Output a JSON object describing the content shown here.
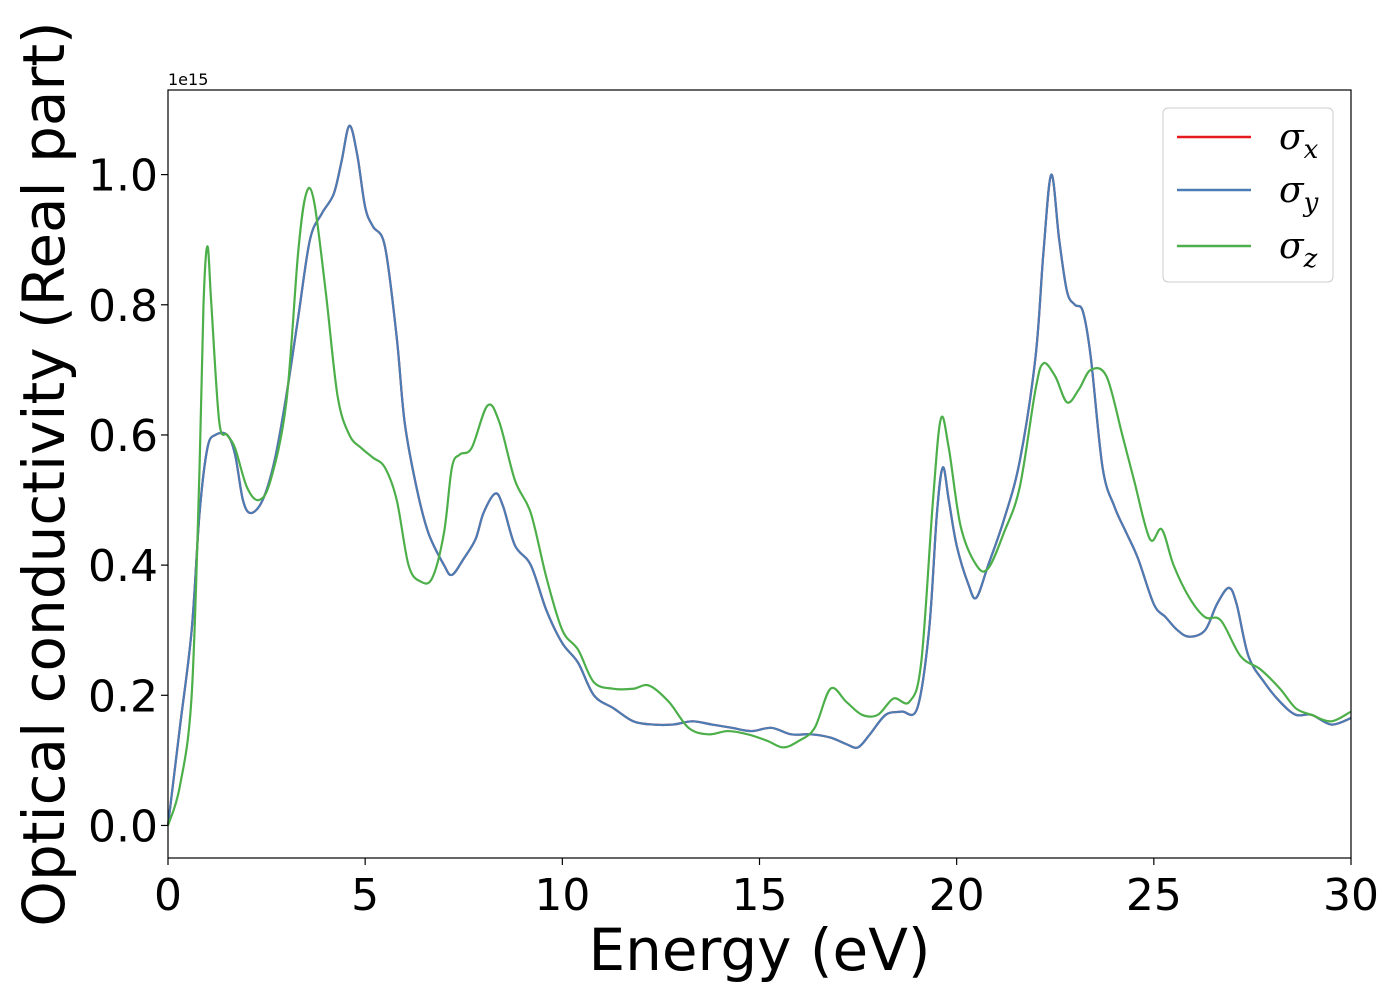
{
  "chart_data": {
    "type": "line",
    "xlabel": "Energy (eV)",
    "ylabel": "Optical conductivity (Real part)",
    "y_offset_label": "1e15",
    "xlim": [
      0,
      30
    ],
    "ylim": [
      -0.05,
      1.13
    ],
    "xticks": [
      0,
      5,
      10,
      15,
      20,
      25,
      30
    ],
    "xtick_labels": [
      "0",
      "5",
      "10",
      "15",
      "20",
      "25",
      "30"
    ],
    "yticks": [
      0.0,
      0.2,
      0.4,
      0.6,
      0.8,
      1.0
    ],
    "ytick_labels": [
      "0.0",
      "0.2",
      "0.4",
      "0.6",
      "0.8",
      "1.0"
    ],
    "grid": false,
    "legend_position": "top-right",
    "series": [
      {
        "name": "σx",
        "symbol": "σ",
        "sub": "x",
        "color": "#e41a1c",
        "points": [
          [
            0,
            0.0
          ],
          [
            0.3,
            0.15
          ],
          [
            0.6,
            0.3
          ],
          [
            0.8,
            0.48
          ],
          [
            1.0,
            0.58
          ],
          [
            1.2,
            0.6
          ],
          [
            1.5,
            0.6
          ],
          [
            1.7,
            0.57
          ],
          [
            1.9,
            0.5
          ],
          [
            2.1,
            0.48
          ],
          [
            2.4,
            0.5
          ],
          [
            2.7,
            0.56
          ],
          [
            3.0,
            0.66
          ],
          [
            3.3,
            0.78
          ],
          [
            3.6,
            0.9
          ],
          [
            3.9,
            0.94
          ],
          [
            4.2,
            0.97
          ],
          [
            4.4,
            1.02
          ],
          [
            4.6,
            1.075
          ],
          [
            4.8,
            1.03
          ],
          [
            5.0,
            0.95
          ],
          [
            5.2,
            0.92
          ],
          [
            5.5,
            0.89
          ],
          [
            5.8,
            0.75
          ],
          [
            6.0,
            0.62
          ],
          [
            6.3,
            0.52
          ],
          [
            6.6,
            0.45
          ],
          [
            7.0,
            0.4
          ],
          [
            7.2,
            0.385
          ],
          [
            7.5,
            0.41
          ],
          [
            7.8,
            0.44
          ],
          [
            8.0,
            0.48
          ],
          [
            8.3,
            0.51
          ],
          [
            8.5,
            0.49
          ],
          [
            8.8,
            0.43
          ],
          [
            9.2,
            0.4
          ],
          [
            9.6,
            0.33
          ],
          [
            10.0,
            0.28
          ],
          [
            10.4,
            0.25
          ],
          [
            10.8,
            0.2
          ],
          [
            11.3,
            0.18
          ],
          [
            11.8,
            0.16
          ],
          [
            12.3,
            0.155
          ],
          [
            12.8,
            0.155
          ],
          [
            13.3,
            0.16
          ],
          [
            13.8,
            0.155
          ],
          [
            14.3,
            0.15
          ],
          [
            14.8,
            0.145
          ],
          [
            15.3,
            0.15
          ],
          [
            15.8,
            0.14
          ],
          [
            16.3,
            0.14
          ],
          [
            16.8,
            0.135
          ],
          [
            17.2,
            0.125
          ],
          [
            17.5,
            0.12
          ],
          [
            17.8,
            0.14
          ],
          [
            18.2,
            0.17
          ],
          [
            18.6,
            0.175
          ],
          [
            19.0,
            0.18
          ],
          [
            19.3,
            0.3
          ],
          [
            19.5,
            0.48
          ],
          [
            19.65,
            0.55
          ],
          [
            19.8,
            0.5
          ],
          [
            20.0,
            0.43
          ],
          [
            20.3,
            0.37
          ],
          [
            20.5,
            0.35
          ],
          [
            20.8,
            0.4
          ],
          [
            21.2,
            0.47
          ],
          [
            21.6,
            0.56
          ],
          [
            22.0,
            0.72
          ],
          [
            22.2,
            0.88
          ],
          [
            22.4,
            1.0
          ],
          [
            22.6,
            0.9
          ],
          [
            22.8,
            0.82
          ],
          [
            23.0,
            0.8
          ],
          [
            23.2,
            0.79
          ],
          [
            23.4,
            0.72
          ],
          [
            23.7,
            0.55
          ],
          [
            24.0,
            0.49
          ],
          [
            24.3,
            0.45
          ],
          [
            24.6,
            0.41
          ],
          [
            25.0,
            0.34
          ],
          [
            25.3,
            0.32
          ],
          [
            25.6,
            0.3
          ],
          [
            25.9,
            0.29
          ],
          [
            26.3,
            0.3
          ],
          [
            26.6,
            0.34
          ],
          [
            26.9,
            0.365
          ],
          [
            27.1,
            0.34
          ],
          [
            27.4,
            0.26
          ],
          [
            27.8,
            0.22
          ],
          [
            28.2,
            0.19
          ],
          [
            28.6,
            0.17
          ],
          [
            29.0,
            0.17
          ],
          [
            29.5,
            0.155
          ],
          [
            30.0,
            0.165
          ]
        ]
      },
      {
        "name": "σy",
        "symbol": "σ",
        "sub": "y",
        "color": "#4a7db5",
        "points": [
          [
            0,
            0.0
          ],
          [
            0.3,
            0.15
          ],
          [
            0.6,
            0.3
          ],
          [
            0.8,
            0.48
          ],
          [
            1.0,
            0.58
          ],
          [
            1.2,
            0.6
          ],
          [
            1.5,
            0.6
          ],
          [
            1.7,
            0.57
          ],
          [
            1.9,
            0.5
          ],
          [
            2.1,
            0.48
          ],
          [
            2.4,
            0.5
          ],
          [
            2.7,
            0.56
          ],
          [
            3.0,
            0.66
          ],
          [
            3.3,
            0.78
          ],
          [
            3.6,
            0.9
          ],
          [
            3.9,
            0.94
          ],
          [
            4.2,
            0.97
          ],
          [
            4.4,
            1.02
          ],
          [
            4.6,
            1.075
          ],
          [
            4.8,
            1.03
          ],
          [
            5.0,
            0.95
          ],
          [
            5.2,
            0.92
          ],
          [
            5.5,
            0.89
          ],
          [
            5.8,
            0.75
          ],
          [
            6.0,
            0.62
          ],
          [
            6.3,
            0.52
          ],
          [
            6.6,
            0.45
          ],
          [
            7.0,
            0.4
          ],
          [
            7.2,
            0.385
          ],
          [
            7.5,
            0.41
          ],
          [
            7.8,
            0.44
          ],
          [
            8.0,
            0.48
          ],
          [
            8.3,
            0.51
          ],
          [
            8.5,
            0.49
          ],
          [
            8.8,
            0.43
          ],
          [
            9.2,
            0.4
          ],
          [
            9.6,
            0.33
          ],
          [
            10.0,
            0.28
          ],
          [
            10.4,
            0.25
          ],
          [
            10.8,
            0.2
          ],
          [
            11.3,
            0.18
          ],
          [
            11.8,
            0.16
          ],
          [
            12.3,
            0.155
          ],
          [
            12.8,
            0.155
          ],
          [
            13.3,
            0.16
          ],
          [
            13.8,
            0.155
          ],
          [
            14.3,
            0.15
          ],
          [
            14.8,
            0.145
          ],
          [
            15.3,
            0.15
          ],
          [
            15.8,
            0.14
          ],
          [
            16.3,
            0.14
          ],
          [
            16.8,
            0.135
          ],
          [
            17.2,
            0.125
          ],
          [
            17.5,
            0.12
          ],
          [
            17.8,
            0.14
          ],
          [
            18.2,
            0.17
          ],
          [
            18.6,
            0.175
          ],
          [
            19.0,
            0.18
          ],
          [
            19.3,
            0.3
          ],
          [
            19.5,
            0.48
          ],
          [
            19.65,
            0.55
          ],
          [
            19.8,
            0.5
          ],
          [
            20.0,
            0.43
          ],
          [
            20.3,
            0.37
          ],
          [
            20.5,
            0.35
          ],
          [
            20.8,
            0.4
          ],
          [
            21.2,
            0.47
          ],
          [
            21.6,
            0.56
          ],
          [
            22.0,
            0.72
          ],
          [
            22.2,
            0.88
          ],
          [
            22.4,
            1.0
          ],
          [
            22.6,
            0.9
          ],
          [
            22.8,
            0.82
          ],
          [
            23.0,
            0.8
          ],
          [
            23.2,
            0.79
          ],
          [
            23.4,
            0.72
          ],
          [
            23.7,
            0.55
          ],
          [
            24.0,
            0.49
          ],
          [
            24.3,
            0.45
          ],
          [
            24.6,
            0.41
          ],
          [
            25.0,
            0.34
          ],
          [
            25.3,
            0.32
          ],
          [
            25.6,
            0.3
          ],
          [
            25.9,
            0.29
          ],
          [
            26.3,
            0.3
          ],
          [
            26.6,
            0.34
          ],
          [
            26.9,
            0.365
          ],
          [
            27.1,
            0.34
          ],
          [
            27.4,
            0.26
          ],
          [
            27.8,
            0.22
          ],
          [
            28.2,
            0.19
          ],
          [
            28.6,
            0.17
          ],
          [
            29.0,
            0.17
          ],
          [
            29.5,
            0.155
          ],
          [
            30.0,
            0.165
          ]
        ]
      },
      {
        "name": "σz",
        "symbol": "σ",
        "sub": "z",
        "color": "#4daf4a",
        "points": [
          [
            0,
            0.0
          ],
          [
            0.3,
            0.06
          ],
          [
            0.6,
            0.2
          ],
          [
            0.8,
            0.55
          ],
          [
            0.9,
            0.8
          ],
          [
            1.0,
            0.89
          ],
          [
            1.1,
            0.8
          ],
          [
            1.3,
            0.62
          ],
          [
            1.5,
            0.6
          ],
          [
            1.7,
            0.58
          ],
          [
            2.0,
            0.52
          ],
          [
            2.3,
            0.5
          ],
          [
            2.6,
            0.53
          ],
          [
            3.0,
            0.65
          ],
          [
            3.3,
            0.88
          ],
          [
            3.5,
            0.97
          ],
          [
            3.7,
            0.96
          ],
          [
            4.0,
            0.82
          ],
          [
            4.3,
            0.66
          ],
          [
            4.6,
            0.6
          ],
          [
            4.9,
            0.58
          ],
          [
            5.2,
            0.565
          ],
          [
            5.5,
            0.55
          ],
          [
            5.8,
            0.5
          ],
          [
            6.1,
            0.4
          ],
          [
            6.4,
            0.375
          ],
          [
            6.7,
            0.38
          ],
          [
            7.0,
            0.45
          ],
          [
            7.2,
            0.55
          ],
          [
            7.4,
            0.57
          ],
          [
            7.7,
            0.58
          ],
          [
            8.1,
            0.645
          ],
          [
            8.4,
            0.62
          ],
          [
            8.8,
            0.53
          ],
          [
            9.2,
            0.48
          ],
          [
            9.6,
            0.38
          ],
          [
            10.0,
            0.3
          ],
          [
            10.4,
            0.27
          ],
          [
            10.8,
            0.22
          ],
          [
            11.3,
            0.21
          ],
          [
            11.8,
            0.21
          ],
          [
            12.2,
            0.215
          ],
          [
            12.7,
            0.19
          ],
          [
            13.2,
            0.15
          ],
          [
            13.7,
            0.14
          ],
          [
            14.2,
            0.145
          ],
          [
            14.7,
            0.14
          ],
          [
            15.2,
            0.13
          ],
          [
            15.6,
            0.12
          ],
          [
            16.0,
            0.13
          ],
          [
            16.4,
            0.15
          ],
          [
            16.8,
            0.21
          ],
          [
            17.2,
            0.19
          ],
          [
            17.6,
            0.17
          ],
          [
            18.0,
            0.17
          ],
          [
            18.4,
            0.195
          ],
          [
            18.8,
            0.19
          ],
          [
            19.1,
            0.25
          ],
          [
            19.4,
            0.5
          ],
          [
            19.6,
            0.625
          ],
          [
            19.8,
            0.58
          ],
          [
            20.1,
            0.46
          ],
          [
            20.5,
            0.4
          ],
          [
            20.8,
            0.395
          ],
          [
            21.2,
            0.45
          ],
          [
            21.6,
            0.52
          ],
          [
            22.0,
            0.67
          ],
          [
            22.2,
            0.71
          ],
          [
            22.5,
            0.69
          ],
          [
            22.8,
            0.65
          ],
          [
            23.1,
            0.67
          ],
          [
            23.4,
            0.7
          ],
          [
            23.8,
            0.69
          ],
          [
            24.2,
            0.6
          ],
          [
            24.5,
            0.53
          ],
          [
            24.9,
            0.44
          ],
          [
            25.2,
            0.455
          ],
          [
            25.5,
            0.4
          ],
          [
            25.9,
            0.35
          ],
          [
            26.3,
            0.32
          ],
          [
            26.7,
            0.315
          ],
          [
            27.2,
            0.26
          ],
          [
            27.7,
            0.24
          ],
          [
            28.2,
            0.21
          ],
          [
            28.6,
            0.18
          ],
          [
            29.0,
            0.17
          ],
          [
            29.5,
            0.16
          ],
          [
            30.0,
            0.175
          ]
        ]
      }
    ]
  }
}
